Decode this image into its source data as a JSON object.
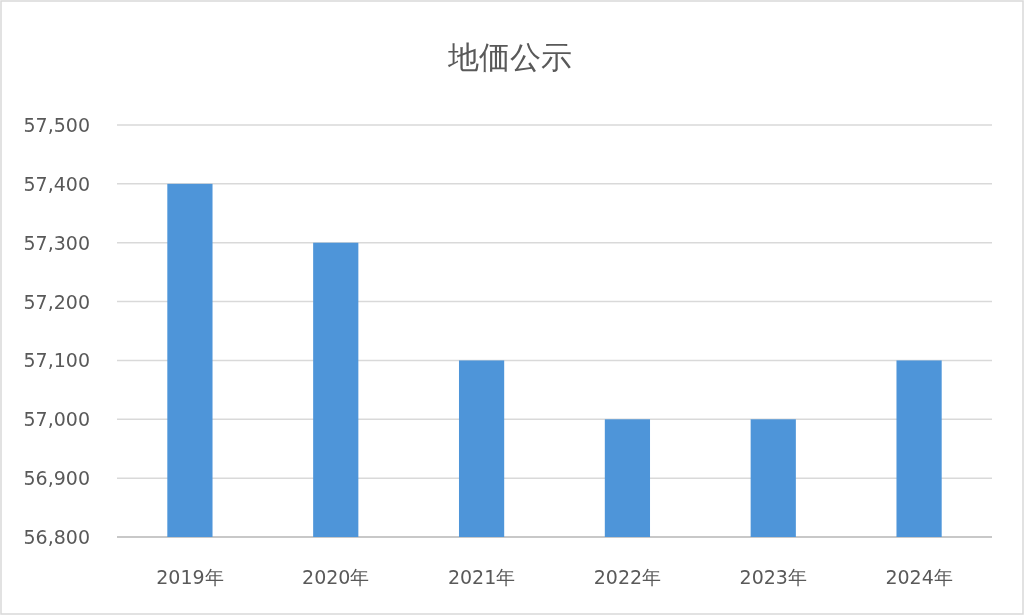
{
  "chart_data": {
    "type": "bar",
    "title": "地価公示",
    "categories": [
      "2019年",
      "2020年",
      "2021年",
      "2022年",
      "2023年",
      "2024年"
    ],
    "values": [
      57400,
      57300,
      57100,
      57000,
      57000,
      57100
    ],
    "color": "#4e95d9",
    "ylim": [
      56800,
      57500
    ],
    "yticks": [
      {
        "value": 56800,
        "label": "56,800"
      },
      {
        "value": 56900,
        "label": "56,900"
      },
      {
        "value": 57000,
        "label": "57,000"
      },
      {
        "value": 57100,
        "label": "57,100"
      },
      {
        "value": 57200,
        "label": "57,200"
      },
      {
        "value": 57300,
        "label": "57,300"
      },
      {
        "value": 57400,
        "label": "57,400"
      },
      {
        "value": 57500,
        "label": "57,500"
      }
    ],
    "grid": "y"
  }
}
